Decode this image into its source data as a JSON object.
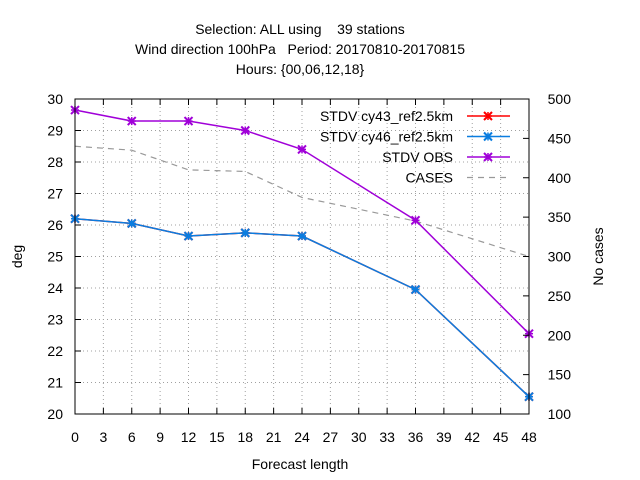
{
  "chart_data": {
    "type": "line",
    "title_lines": [
      "Selection: ALL using    39 stations",
      "Wind direction 100hPa   Period: 20170810-20170815",
      "Hours: {00,06,12,18}"
    ],
    "xlabel": "Forecast length",
    "ylabel": "deg",
    "y2label": "No cases",
    "xlim": [
      0,
      48
    ],
    "ylim": [
      20,
      30
    ],
    "y2lim": [
      100,
      500
    ],
    "xticks": [
      0,
      3,
      6,
      9,
      12,
      15,
      18,
      21,
      24,
      27,
      30,
      33,
      36,
      39,
      42,
      45,
      48
    ],
    "yticks": [
      20,
      21,
      22,
      23,
      24,
      25,
      26,
      27,
      28,
      29,
      30
    ],
    "y2ticks": [
      150,
      200,
      250,
      300,
      350,
      400,
      450,
      500
    ],
    "y2tick_labels_extra": [
      100
    ],
    "grid": true,
    "legend_position": "top-right",
    "x": [
      0,
      6,
      12,
      18,
      24,
      36,
      48
    ],
    "series": [
      {
        "name": "STDV cy43_ref2.5km",
        "axis": "y1",
        "color": "#ff0000",
        "style": "solid",
        "marker": "x",
        "values": [
          26.2,
          26.05,
          25.65,
          25.75,
          25.65,
          23.95,
          20.55
        ]
      },
      {
        "name": "STDV cy46_ref2.5km",
        "axis": "y1",
        "color": "#0a7de0",
        "style": "solid",
        "marker": "x",
        "values": [
          26.2,
          26.05,
          25.65,
          25.75,
          25.65,
          23.95,
          20.55
        ]
      },
      {
        "name": "STDV OBS",
        "axis": "y1",
        "color": "#a000d8",
        "style": "solid",
        "marker": "x",
        "values": [
          29.65,
          29.3,
          29.3,
          29.0,
          28.4,
          26.15,
          22.55
        ]
      },
      {
        "name": "CASES",
        "axis": "y2",
        "color": "#999999",
        "style": "dashed",
        "marker": "none",
        "x": [
          0,
          6,
          12,
          18,
          24,
          36,
          48
        ],
        "values": [
          440,
          435,
          410,
          408,
          375,
          345,
          300
        ]
      }
    ]
  }
}
